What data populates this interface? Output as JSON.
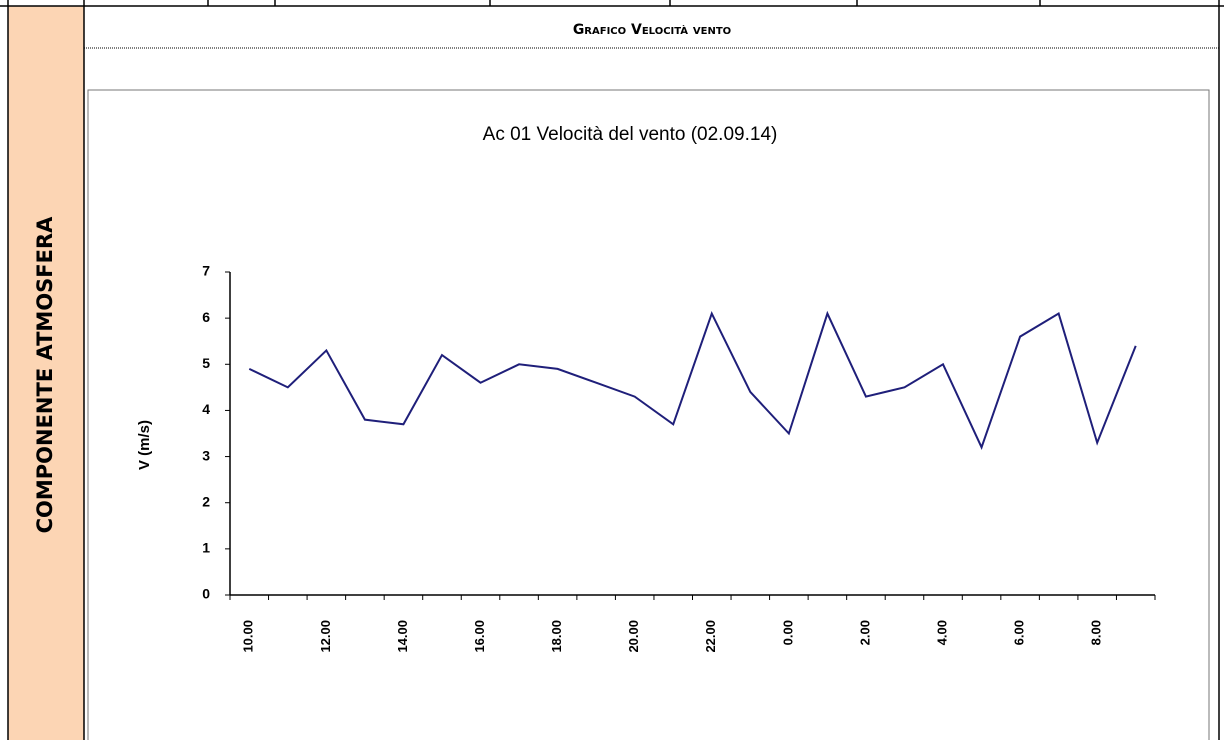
{
  "header": {
    "side_label": "COMPONENTE ATMOSFERA",
    "title": "Grafico Velocità vento"
  },
  "chart_data": {
    "type": "line",
    "title": "Ac 01 Velocità del vento (02.09.14)",
    "y_label": "V (m/s)",
    "categories": [
      "10.00",
      null,
      "12.00",
      null,
      "14.00",
      null,
      "16.00",
      null,
      "18.00",
      null,
      "20.00",
      null,
      "22.00",
      null,
      "0.00",
      null,
      "2.00",
      null,
      "4.00",
      null,
      "6.00",
      null,
      "8.00",
      null
    ],
    "values": [
      4.9,
      4.5,
      5.3,
      3.8,
      3.7,
      5.2,
      4.6,
      5.0,
      4.9,
      4.6,
      4.3,
      3.7,
      6.1,
      4.4,
      3.5,
      6.1,
      4.3,
      4.5,
      5.0,
      3.2,
      5.6,
      6.1,
      3.3,
      5.4
    ],
    "color": "#1f1f7a",
    "ylim": [
      0,
      7
    ],
    "yticks": [
      0,
      1,
      2,
      3,
      4,
      5,
      6,
      7
    ],
    "grid": false
  }
}
